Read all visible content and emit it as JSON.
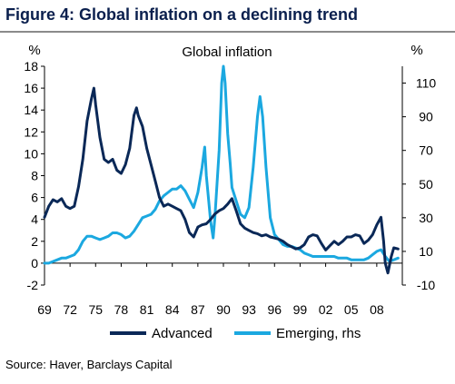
{
  "figure": {
    "title": "Figure 4:  Global inflation on a declining trend",
    "source": "Source: Haver, Barclays Capital"
  },
  "chart_data": {
    "type": "line",
    "title": "Global inflation",
    "left_unit": "%",
    "right_unit": "%",
    "x_ticks": [
      "69",
      "72",
      "75",
      "78",
      "81",
      "84",
      "87",
      "90",
      "93",
      "96",
      "99",
      "02",
      "05",
      "08"
    ],
    "x_range": [
      1969,
      2011
    ],
    "y_left_range": [
      -2,
      18
    ],
    "y_left_ticks": [
      -2,
      0,
      2,
      4,
      6,
      8,
      10,
      12,
      14,
      16,
      18
    ],
    "y_right_range": [
      -10,
      120
    ],
    "y_right_ticks": [
      -10,
      10,
      30,
      50,
      70,
      90,
      110
    ],
    "grid": false,
    "legend_position": "bottom",
    "colors": {
      "advanced": "#0a2857",
      "emerging": "#1ba8e0",
      "title": "#0a1f4d"
    },
    "series": [
      {
        "name": "Advanced",
        "axis": "left",
        "points": [
          [
            1969.0,
            4.2
          ],
          [
            1969.5,
            5.2
          ],
          [
            1970.0,
            5.8
          ],
          [
            1970.5,
            5.6
          ],
          [
            1971.0,
            5.9
          ],
          [
            1971.5,
            5.2
          ],
          [
            1972.0,
            5.0
          ],
          [
            1972.5,
            5.2
          ],
          [
            1973.0,
            7.0
          ],
          [
            1973.5,
            9.5
          ],
          [
            1974.0,
            13.0
          ],
          [
            1974.5,
            15.0
          ],
          [
            1974.8,
            16.0
          ],
          [
            1975.0,
            14.5
          ],
          [
            1975.5,
            11.5
          ],
          [
            1976.0,
            9.5
          ],
          [
            1976.5,
            9.2
          ],
          [
            1977.0,
            9.5
          ],
          [
            1977.5,
            8.5
          ],
          [
            1978.0,
            8.2
          ],
          [
            1978.5,
            9.0
          ],
          [
            1979.0,
            10.5
          ],
          [
            1979.5,
            13.5
          ],
          [
            1979.8,
            14.2
          ],
          [
            1980.0,
            13.5
          ],
          [
            1980.5,
            12.5
          ],
          [
            1981.0,
            10.5
          ],
          [
            1981.5,
            9.0
          ],
          [
            1982.0,
            7.5
          ],
          [
            1982.5,
            6.0
          ],
          [
            1983.0,
            5.2
          ],
          [
            1983.5,
            5.4
          ],
          [
            1984.0,
            5.2
          ],
          [
            1984.5,
            5.0
          ],
          [
            1985.0,
            4.8
          ],
          [
            1985.5,
            4.0
          ],
          [
            1986.0,
            2.8
          ],
          [
            1986.5,
            2.4
          ],
          [
            1987.0,
            3.3
          ],
          [
            1987.5,
            3.5
          ],
          [
            1988.0,
            3.6
          ],
          [
            1988.5,
            4.0
          ],
          [
            1989.0,
            4.5
          ],
          [
            1989.5,
            4.8
          ],
          [
            1990.0,
            5.0
          ],
          [
            1990.5,
            5.4
          ],
          [
            1991.0,
            5.9
          ],
          [
            1991.5,
            4.8
          ],
          [
            1992.0,
            3.6
          ],
          [
            1992.5,
            3.2
          ],
          [
            1993.0,
            3.0
          ],
          [
            1993.5,
            2.8
          ],
          [
            1994.0,
            2.7
          ],
          [
            1994.5,
            2.5
          ],
          [
            1995.0,
            2.6
          ],
          [
            1995.5,
            2.4
          ],
          [
            1996.0,
            2.3
          ],
          [
            1996.5,
            2.2
          ],
          [
            1997.0,
            2.0
          ],
          [
            1997.5,
            1.7
          ],
          [
            1998.0,
            1.5
          ],
          [
            1998.5,
            1.3
          ],
          [
            1999.0,
            1.4
          ],
          [
            1999.5,
            1.7
          ],
          [
            2000.0,
            2.4
          ],
          [
            2000.5,
            2.6
          ],
          [
            2001.0,
            2.5
          ],
          [
            2001.5,
            1.8
          ],
          [
            2002.0,
            1.2
          ],
          [
            2002.5,
            1.6
          ],
          [
            2003.0,
            2.0
          ],
          [
            2003.5,
            1.7
          ],
          [
            2004.0,
            2.0
          ],
          [
            2004.5,
            2.4
          ],
          [
            2005.0,
            2.4
          ],
          [
            2005.5,
            2.6
          ],
          [
            2006.0,
            2.5
          ],
          [
            2006.5,
            1.8
          ],
          [
            2007.0,
            2.1
          ],
          [
            2007.5,
            2.6
          ],
          [
            2008.0,
            3.5
          ],
          [
            2008.5,
            4.2
          ],
          [
            2008.8,
            2.0
          ],
          [
            2009.0,
            0.0
          ],
          [
            2009.3,
            -0.9
          ],
          [
            2009.7,
            0.6
          ],
          [
            2010.0,
            1.4
          ],
          [
            2010.5,
            1.3
          ]
        ]
      },
      {
        "name": "Emerging, rhs",
        "axis": "right",
        "points": [
          [
            1969.0,
            3
          ],
          [
            1969.5,
            3
          ],
          [
            1970.0,
            4
          ],
          [
            1970.5,
            5
          ],
          [
            1971.0,
            6
          ],
          [
            1971.5,
            6
          ],
          [
            1972.0,
            7
          ],
          [
            1972.5,
            8
          ],
          [
            1973.0,
            11
          ],
          [
            1973.5,
            16
          ],
          [
            1974.0,
            19
          ],
          [
            1974.5,
            19
          ],
          [
            1975.0,
            18
          ],
          [
            1975.5,
            17
          ],
          [
            1976.0,
            18
          ],
          [
            1976.5,
            19
          ],
          [
            1977.0,
            21
          ],
          [
            1977.5,
            21
          ],
          [
            1978.0,
            20
          ],
          [
            1978.5,
            18
          ],
          [
            1979.0,
            19
          ],
          [
            1979.5,
            22
          ],
          [
            1980.0,
            26
          ],
          [
            1980.5,
            30
          ],
          [
            1981.0,
            31
          ],
          [
            1981.5,
            32
          ],
          [
            1982.0,
            35
          ],
          [
            1982.5,
            40
          ],
          [
            1983.0,
            43
          ],
          [
            1983.5,
            45
          ],
          [
            1984.0,
            47
          ],
          [
            1984.5,
            47
          ],
          [
            1985.0,
            49
          ],
          [
            1985.5,
            46
          ],
          [
            1986.0,
            41
          ],
          [
            1986.5,
            36
          ],
          [
            1987.0,
            45
          ],
          [
            1987.5,
            60
          ],
          [
            1987.8,
            72
          ],
          [
            1988.0,
            55
          ],
          [
            1988.5,
            28
          ],
          [
            1988.8,
            18
          ],
          [
            1989.0,
            30
          ],
          [
            1989.5,
            70
          ],
          [
            1989.8,
            110
          ],
          [
            1990.0,
            120
          ],
          [
            1990.2,
            110
          ],
          [
            1990.5,
            80
          ],
          [
            1990.8,
            62
          ],
          [
            1991.0,
            48
          ],
          [
            1991.5,
            40
          ],
          [
            1992.0,
            32
          ],
          [
            1992.5,
            30
          ],
          [
            1993.0,
            36
          ],
          [
            1993.5,
            60
          ],
          [
            1994.0,
            90
          ],
          [
            1994.3,
            102
          ],
          [
            1994.6,
            90
          ],
          [
            1995.0,
            60
          ],
          [
            1995.5,
            30
          ],
          [
            1996.0,
            20
          ],
          [
            1996.5,
            17
          ],
          [
            1997.0,
            14
          ],
          [
            1997.5,
            13
          ],
          [
            1998.0,
            13
          ],
          [
            1998.5,
            12
          ],
          [
            1999.0,
            11
          ],
          [
            1999.5,
            9
          ],
          [
            2000.0,
            8
          ],
          [
            2000.5,
            7
          ],
          [
            2001.0,
            7
          ],
          [
            2001.5,
            7
          ],
          [
            2002.0,
            7
          ],
          [
            2002.5,
            7
          ],
          [
            2003.0,
            7
          ],
          [
            2003.5,
            6
          ],
          [
            2004.0,
            6
          ],
          [
            2004.5,
            6
          ],
          [
            2005.0,
            5
          ],
          [
            2005.5,
            5
          ],
          [
            2006.0,
            5
          ],
          [
            2006.5,
            5
          ],
          [
            2007.0,
            6
          ],
          [
            2007.5,
            8
          ],
          [
            2008.0,
            10
          ],
          [
            2008.5,
            11
          ],
          [
            2009.0,
            7
          ],
          [
            2009.5,
            4
          ],
          [
            2010.0,
            5
          ],
          [
            2010.5,
            6
          ]
        ]
      }
    ]
  }
}
